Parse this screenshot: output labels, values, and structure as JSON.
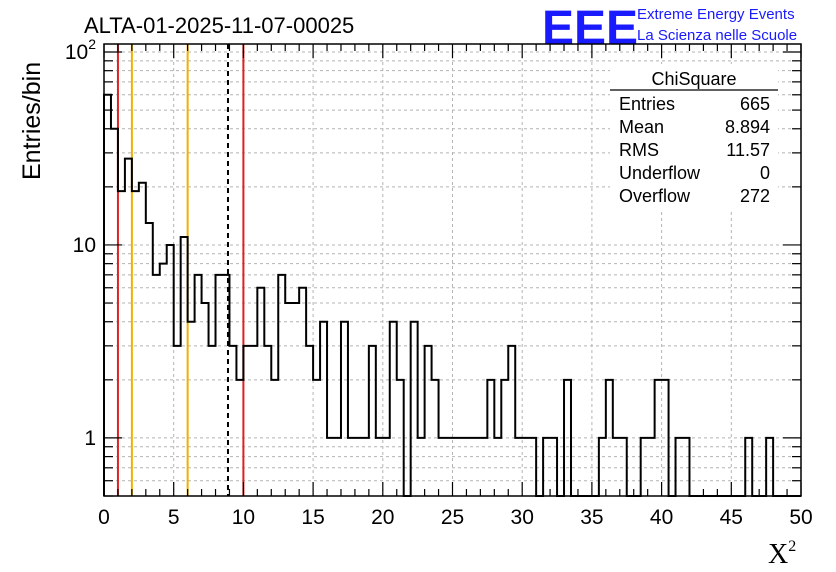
{
  "header": {
    "title": "ALTA-01-2025-11-07-00025",
    "logo_mark": "EEE",
    "logo_line1": "Extreme Energy Events",
    "logo_line2": "La Scienza nelle Scuole",
    "logo_color": "#1a1aff"
  },
  "stats_box": {
    "name": "ChiSquare",
    "rows": [
      {
        "label": "Entries",
        "value": "665"
      },
      {
        "label": "Mean",
        "value": "8.894"
      },
      {
        "label": "RMS",
        "value": "11.57"
      },
      {
        "label": "Underflow",
        "value": "0"
      },
      {
        "label": "Overflow",
        "value": "272"
      }
    ]
  },
  "chart_data": {
    "type": "histogram",
    "title": "ALTA-01-2025-11-07-00025",
    "xlabel": "X",
    "xlabel_superscript": "2",
    "ylabel": "Entries/bin",
    "xlim": [
      0,
      50
    ],
    "ylim": [
      0.5,
      110
    ],
    "yscale": "log",
    "grid": true,
    "bin_width": 0.5,
    "x_ticks": [
      "0",
      "5",
      "10",
      "15",
      "20",
      "25",
      "30",
      "35",
      "40",
      "45",
      "50"
    ],
    "y_ticks": [
      {
        "value": 1,
        "label": "1"
      },
      {
        "value": 10,
        "label": "10"
      },
      {
        "value": 100,
        "label": "10",
        "exponent": "2"
      }
    ],
    "values": [
      60,
      40,
      19,
      28,
      19,
      21,
      13,
      7,
      8,
      10,
      3,
      11,
      4,
      7,
      5,
      3,
      7,
      7,
      3,
      2,
      3,
      3,
      6,
      3,
      2,
      7,
      5,
      5,
      6,
      3,
      2,
      4,
      1,
      1,
      4,
      1,
      1,
      1,
      3,
      1,
      1,
      4,
      2,
      0,
      4,
      1,
      3,
      2,
      1,
      1,
      1,
      1,
      1,
      1,
      1,
      2,
      1,
      2,
      3,
      1,
      1,
      1,
      0,
      1,
      1,
      0,
      2,
      0,
      0,
      0,
      0,
      1,
      2,
      1,
      1,
      0,
      0,
      1,
      1,
      2,
      2,
      0,
      1,
      1,
      0,
      0,
      0,
      0,
      0,
      0,
      0,
      0,
      1,
      0,
      0,
      1,
      0,
      0,
      0,
      0
    ],
    "vlines": [
      {
        "x": 1,
        "color": "#e02020",
        "style": "solid"
      },
      {
        "x": 2,
        "color": "#f0b000",
        "style": "solid"
      },
      {
        "x": 6,
        "color": "#f0b000",
        "style": "solid"
      },
      {
        "x": 8.894,
        "color": "#000000",
        "style": "dashed"
      },
      {
        "x": 10,
        "color": "#e02020",
        "style": "solid"
      }
    ]
  }
}
